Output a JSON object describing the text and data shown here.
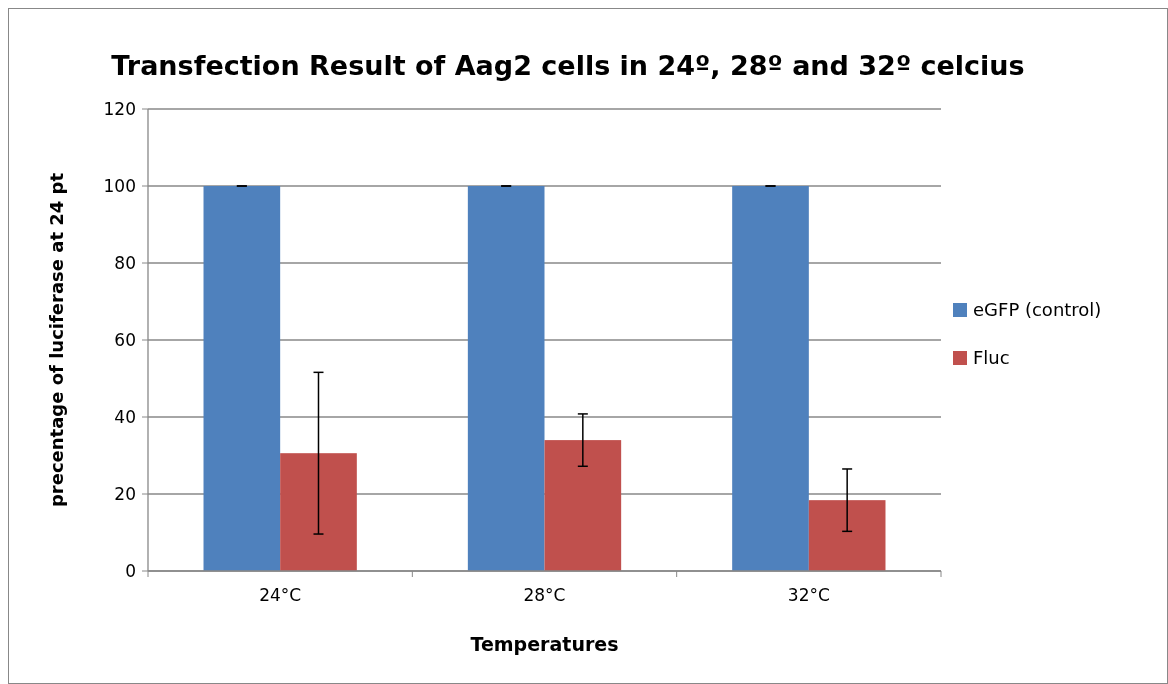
{
  "chart_data": {
    "type": "bar",
    "title": "Transfection Result of Aag2 cells in 24º, 28º and 32º celcius",
    "xlabel": "Temperatures",
    "ylabel": "precentage of luciferase at 24 pt",
    "categories": [
      "24°C",
      "28°C",
      "32°C"
    ],
    "series": [
      {
        "name": "eGFP (control)",
        "color": "#4f81bd",
        "values": [
          100,
          100,
          100
        ],
        "errors": [
          0,
          0,
          0
        ]
      },
      {
        "name": "Fluc",
        "color": "#c0504d",
        "values": [
          30.6,
          34.0,
          18.4
        ],
        "errors": [
          21,
          6.8,
          8.1
        ]
      }
    ],
    "ylim": [
      0,
      120
    ],
    "yticks": [
      0,
      20,
      40,
      60,
      80,
      100,
      120
    ],
    "grid": "y",
    "legend": "right"
  }
}
